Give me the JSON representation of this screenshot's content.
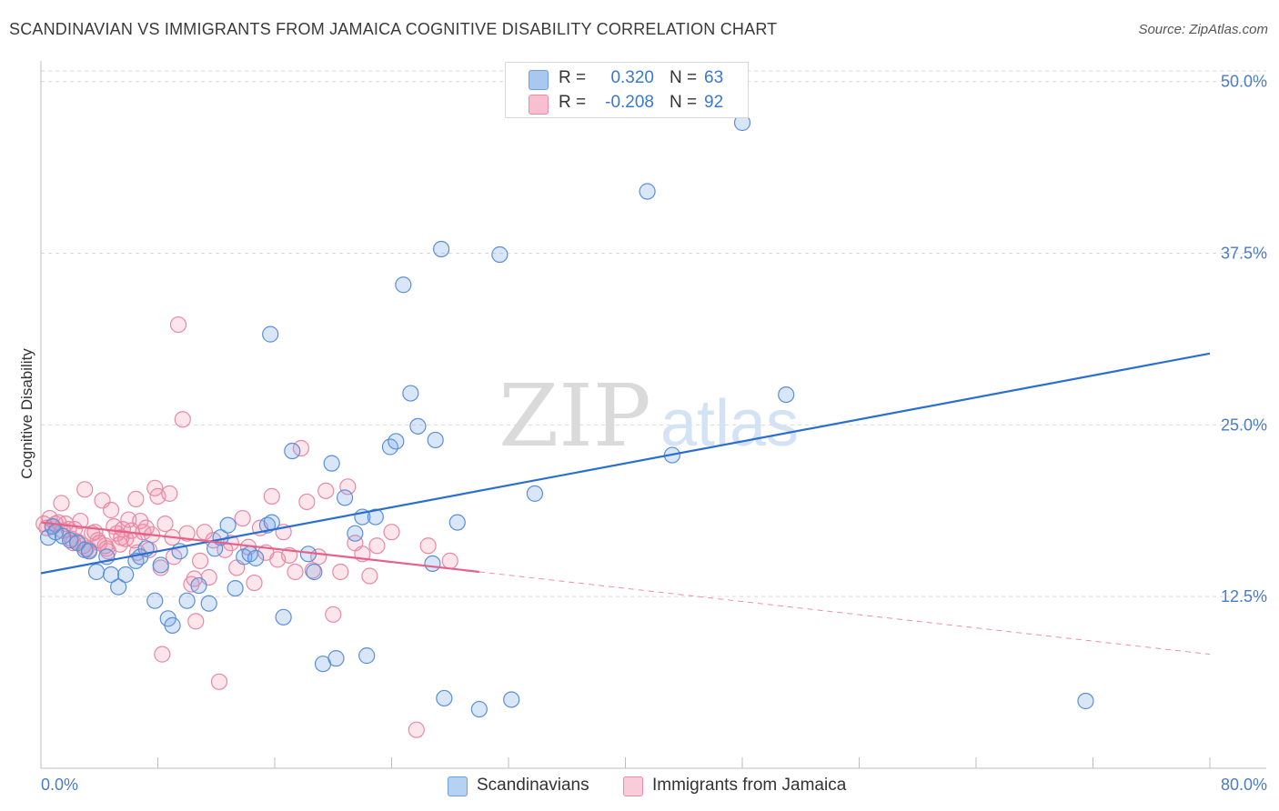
{
  "title": "SCANDINAVIAN VS IMMIGRANTS FROM JAMAICA COGNITIVE DISABILITY CORRELATION CHART",
  "source": "Source: ZipAtlas.com",
  "watermark": {
    "zip": "ZIP",
    "atlas": "atlas"
  },
  "legend": {
    "rows": [
      {
        "r_label": "R =",
        "r_value": "0.320",
        "n_label": "N =",
        "n_value": "63",
        "color": "#a8c8f0",
        "border": "#6e9fe0"
      },
      {
        "r_label": "R =",
        "r_value": "-0.208",
        "n_label": "N =",
        "n_value": "92",
        "color": "#f7bfd0",
        "border": "#ee8aa9"
      }
    ]
  },
  "bottom_legend": {
    "items": [
      {
        "label": "Scandinavians",
        "color": "#b7d1f3",
        "border": "#6e9fe0"
      },
      {
        "label": "Immigrants from Jamaica",
        "color": "#f9ccda",
        "border": "#ee8aa9"
      }
    ]
  },
  "colors": {
    "blue_fill": "rgba(120,165,230,0.28)",
    "blue_stroke": "#5a8fd8",
    "blue_line": "#2a6fcf",
    "pink_fill": "rgba(240,140,170,0.22)",
    "pink_stroke": "#e889a6",
    "pink_line": "#e8608a",
    "grid": "#d9d9d9",
    "tick_text": "#4a7cc8"
  },
  "chart_data": {
    "type": "scatter",
    "title": "SCANDINAVIAN VS IMMIGRANTS FROM JAMAICA COGNITIVE DISABILITY CORRELATION CHART",
    "xlabel": "",
    "ylabel": "Cognitive Disability",
    "xlim": [
      0,
      80
    ],
    "ylim": [
      0,
      51.5
    ],
    "x_tick_labels": [
      {
        "value": 0,
        "label": "0.0%"
      },
      {
        "value": 80,
        "label": "80.0%"
      }
    ],
    "x_minor_ticks": [
      0,
      8,
      16,
      24,
      32,
      40,
      48,
      56,
      64,
      72,
      80
    ],
    "y_ticks": [
      {
        "value": 12.5,
        "label": "12.5%"
      },
      {
        "value": 25,
        "label": "25.0%"
      },
      {
        "value": 37.5,
        "label": "37.5%"
      },
      {
        "value": 50,
        "label": "50.0%"
      }
    ],
    "grid": true,
    "series": [
      {
        "name": "Scandinavians",
        "color": "#5a8fd8",
        "points": [
          [
            0.5,
            16.8
          ],
          [
            0.8,
            17.6
          ],
          [
            1.0,
            17.2
          ],
          [
            1.5,
            16.9
          ],
          [
            2.0,
            16.6
          ],
          [
            2.5,
            16.4
          ],
          [
            3.0,
            15.9
          ],
          [
            3.3,
            15.8
          ],
          [
            3.8,
            14.3
          ],
          [
            4.5,
            15.4
          ],
          [
            4.8,
            14.1
          ],
          [
            5.3,
            13.2
          ],
          [
            5.8,
            14.1
          ],
          [
            6.5,
            15.1
          ],
          [
            6.8,
            15.4
          ],
          [
            7.2,
            16.0
          ],
          [
            7.8,
            12.2
          ],
          [
            8.2,
            14.8
          ],
          [
            8.7,
            10.9
          ],
          [
            9.0,
            10.4
          ],
          [
            9.5,
            15.8
          ],
          [
            10.0,
            12.2
          ],
          [
            10.8,
            13.3
          ],
          [
            11.5,
            12.0
          ],
          [
            11.9,
            16.0
          ],
          [
            12.3,
            16.8
          ],
          [
            12.8,
            17.7
          ],
          [
            13.3,
            13.1
          ],
          [
            13.9,
            15.4
          ],
          [
            14.3,
            15.6
          ],
          [
            14.7,
            15.3
          ],
          [
            15.5,
            17.7
          ],
          [
            15.7,
            31.6
          ],
          [
            15.8,
            17.9
          ],
          [
            16.6,
            11.0
          ],
          [
            17.2,
            23.1
          ],
          [
            18.3,
            15.6
          ],
          [
            18.7,
            14.3
          ],
          [
            19.3,
            7.6
          ],
          [
            19.9,
            22.2
          ],
          [
            20.2,
            8.0
          ],
          [
            20.8,
            19.7
          ],
          [
            21.5,
            17.1
          ],
          [
            22.0,
            18.3
          ],
          [
            22.3,
            8.2
          ],
          [
            22.9,
            18.3
          ],
          [
            23.9,
            23.4
          ],
          [
            24.3,
            23.8
          ],
          [
            24.8,
            35.2
          ],
          [
            25.3,
            27.3
          ],
          [
            25.8,
            24.9
          ],
          [
            27.0,
            23.9
          ],
          [
            27.4,
            37.8
          ],
          [
            27.6,
            5.1
          ],
          [
            28.5,
            17.9
          ],
          [
            30.0,
            4.3
          ],
          [
            31.4,
            37.4
          ],
          [
            32.2,
            5.0
          ],
          [
            33.8,
            20.0
          ],
          [
            41.5,
            42.0
          ],
          [
            43.2,
            22.8
          ],
          [
            48.0,
            47.0
          ],
          [
            51.0,
            27.2
          ],
          [
            71.5,
            4.9
          ],
          [
            26.8,
            14.9
          ]
        ]
      },
      {
        "name": "Immigrants from Jamaica",
        "color": "#e889a6",
        "points": [
          [
            0.2,
            17.8
          ],
          [
            0.4,
            17.5
          ],
          [
            0.6,
            18.2
          ],
          [
            0.8,
            17.6
          ],
          [
            1.0,
            17.8
          ],
          [
            1.2,
            17.9
          ],
          [
            1.4,
            19.3
          ],
          [
            1.5,
            17.3
          ],
          [
            1.7,
            17.8
          ],
          [
            1.9,
            17.4
          ],
          [
            2.1,
            16.7
          ],
          [
            2.3,
            17.4
          ],
          [
            2.5,
            16.5
          ],
          [
            2.7,
            18.0
          ],
          [
            2.9,
            16.2
          ],
          [
            3.1,
            16.0
          ],
          [
            3.3,
            15.9
          ],
          [
            3.5,
            17.1
          ],
          [
            3.7,
            17.2
          ],
          [
            3.9,
            16.6
          ],
          [
            4.0,
            16.4
          ],
          [
            4.2,
            19.5
          ],
          [
            4.4,
            16.2
          ],
          [
            4.6,
            15.8
          ],
          [
            4.8,
            18.8
          ],
          [
            5.0,
            17.6
          ],
          [
            5.2,
            17.1
          ],
          [
            5.4,
            16.3
          ],
          [
            5.6,
            17.4
          ],
          [
            5.8,
            16.7
          ],
          [
            6.0,
            18.1
          ],
          [
            6.2,
            17.3
          ],
          [
            6.4,
            16.6
          ],
          [
            6.6,
            15.7
          ],
          [
            6.8,
            18.0
          ],
          [
            7.0,
            17.2
          ],
          [
            7.2,
            17.5
          ],
          [
            7.4,
            15.9
          ],
          [
            7.6,
            17.0
          ],
          [
            7.8,
            20.4
          ],
          [
            8.0,
            19.8
          ],
          [
            8.2,
            14.6
          ],
          [
            8.5,
            17.8
          ],
          [
            8.8,
            20.0
          ],
          [
            9.1,
            15.4
          ],
          [
            9.4,
            32.3
          ],
          [
            9.7,
            25.4
          ],
          [
            10.0,
            17.1
          ],
          [
            10.3,
            13.4
          ],
          [
            10.6,
            10.7
          ],
          [
            10.9,
            15.1
          ],
          [
            11.2,
            17.2
          ],
          [
            11.5,
            13.9
          ],
          [
            11.8,
            16.6
          ],
          [
            12.2,
            6.3
          ],
          [
            12.6,
            15.9
          ],
          [
            13.0,
            16.4
          ],
          [
            13.4,
            14.6
          ],
          [
            13.8,
            18.2
          ],
          [
            14.2,
            16.1
          ],
          [
            14.6,
            13.5
          ],
          [
            15.0,
            17.5
          ],
          [
            15.4,
            15.7
          ],
          [
            15.8,
            19.8
          ],
          [
            16.2,
            15.2
          ],
          [
            16.6,
            17.2
          ],
          [
            17.0,
            15.5
          ],
          [
            17.4,
            14.3
          ],
          [
            17.8,
            23.3
          ],
          [
            18.2,
            19.4
          ],
          [
            18.6,
            14.4
          ],
          [
            19.0,
            15.4
          ],
          [
            19.5,
            20.2
          ],
          [
            20.0,
            11.2
          ],
          [
            20.5,
            14.3
          ],
          [
            21.0,
            20.5
          ],
          [
            21.5,
            16.4
          ],
          [
            22.0,
            15.6
          ],
          [
            22.5,
            14.0
          ],
          [
            23.0,
            16.2
          ],
          [
            24.0,
            17.2
          ],
          [
            25.7,
            2.8
          ],
          [
            26.5,
            16.2
          ],
          [
            28.0,
            15.1
          ],
          [
            5.5,
            16.8
          ],
          [
            6.5,
            19.6
          ],
          [
            8.3,
            8.3
          ],
          [
            10.5,
            13.8
          ],
          [
            3.0,
            20.3
          ],
          [
            4.5,
            16.0
          ],
          [
            2.2,
            16.4
          ],
          [
            9.0,
            16.8
          ]
        ]
      }
    ],
    "trend_lines": [
      {
        "series": "Scandinavians",
        "solid": [
          [
            0,
            14.2
          ],
          [
            80,
            30.2
          ]
        ]
      },
      {
        "series": "Immigrants from Jamaica",
        "solid": [
          [
            0,
            17.9
          ],
          [
            30,
            14.3
          ]
        ],
        "dashed": [
          [
            30,
            14.3
          ],
          [
            80,
            8.3
          ]
        ]
      }
    ]
  }
}
